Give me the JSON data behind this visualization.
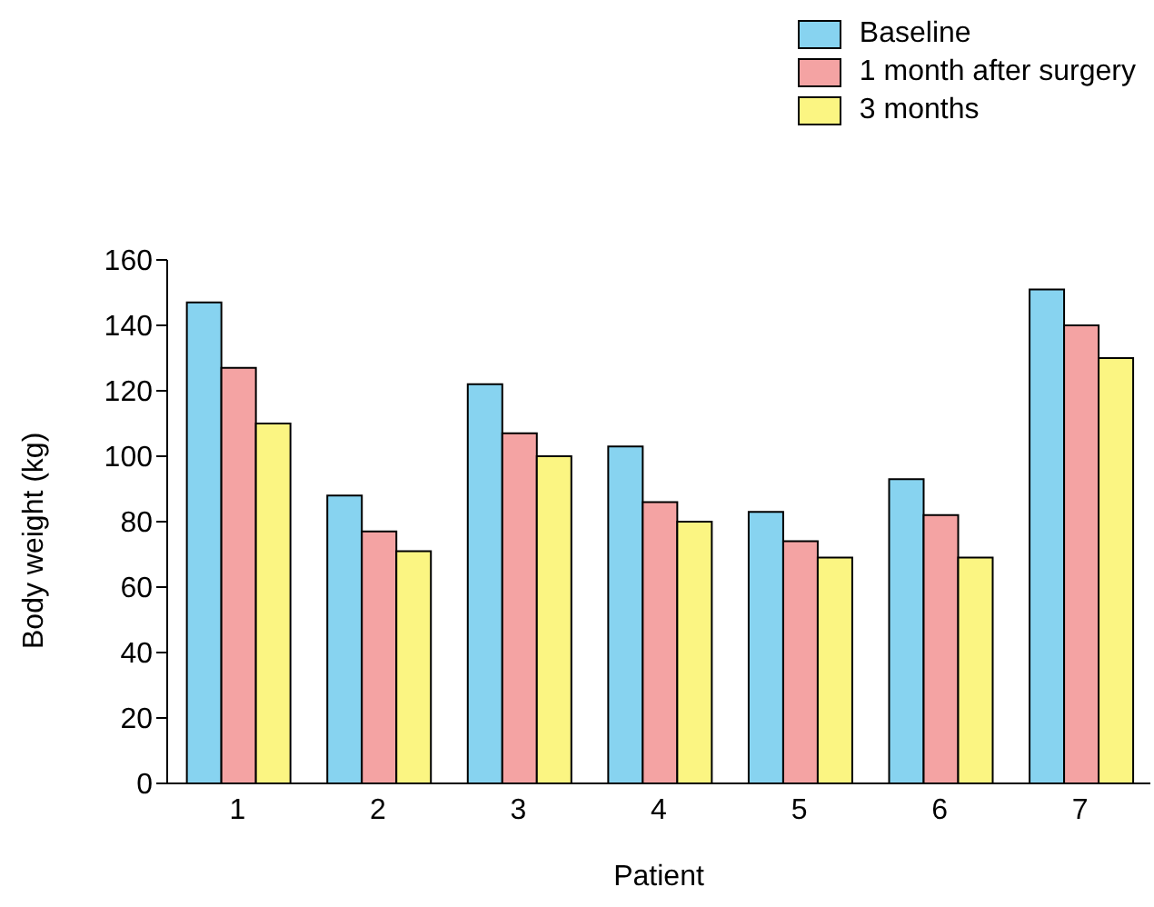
{
  "chart_data": {
    "type": "bar",
    "xlabel": "Patient",
    "ylabel": "Body weight (kg)",
    "categories": [
      "1",
      "2",
      "3",
      "4",
      "5",
      "6",
      "7"
    ],
    "series": [
      {
        "name": "Baseline",
        "color": "#87d3f0",
        "values": [
          147,
          88,
          122,
          103,
          83,
          93,
          151
        ]
      },
      {
        "name": "1 month after surgery",
        "color": "#f4a3a3",
        "values": [
          127,
          77,
          107,
          86,
          74,
          82,
          140
        ]
      },
      {
        "name": "3 months",
        "color": "#fbf582",
        "values": [
          110,
          71,
          100,
          80,
          69,
          69,
          130
        ]
      }
    ],
    "ylim": [
      0,
      160
    ],
    "yticks": [
      0,
      20,
      40,
      60,
      80,
      100,
      120,
      140,
      160
    ],
    "grid": false,
    "legend": "top right"
  }
}
